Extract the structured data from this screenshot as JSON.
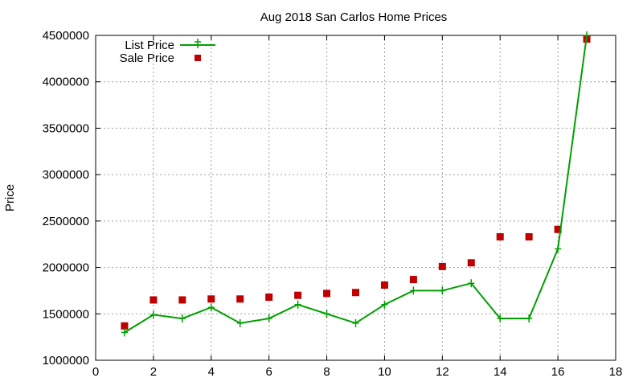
{
  "chart_data": {
    "type": "line",
    "title": "Aug 2018 San Carlos Home Prices",
    "xlabel": "",
    "ylabel": "Price",
    "xlim": [
      0,
      18
    ],
    "ylim": [
      1000000,
      4500000
    ],
    "xticks": [
      0,
      2,
      4,
      6,
      8,
      10,
      12,
      14,
      16,
      18
    ],
    "yticks": [
      1000000,
      1500000,
      2000000,
      2500000,
      3000000,
      3500000,
      4000000,
      4500000
    ],
    "grid": true,
    "legend_position": "top-left",
    "series": [
      {
        "name": "List Price",
        "style": "line-with-plus-markers",
        "color": "#00a000",
        "x": [
          1,
          2,
          3,
          4,
          5,
          6,
          7,
          8,
          9,
          10,
          11,
          12,
          13,
          14,
          15,
          16,
          17
        ],
        "y": [
          1300000,
          1490000,
          1450000,
          1570000,
          1400000,
          1450000,
          1600000,
          1500000,
          1400000,
          1600000,
          1750000,
          1750000,
          1830000,
          1450000,
          1450000,
          2200000,
          4500000
        ]
      },
      {
        "name": "Sale Price",
        "style": "square-markers",
        "color": "#c00000",
        "x": [
          1,
          2,
          3,
          4,
          5,
          6,
          7,
          8,
          9,
          10,
          11,
          12,
          13,
          14,
          15,
          16,
          17
        ],
        "y": [
          1370000,
          1650000,
          1650000,
          1660000,
          1660000,
          1680000,
          1700000,
          1720000,
          1730000,
          1810000,
          1870000,
          2010000,
          2050000,
          2330000,
          2330000,
          2410000,
          4460000
        ]
      }
    ]
  }
}
